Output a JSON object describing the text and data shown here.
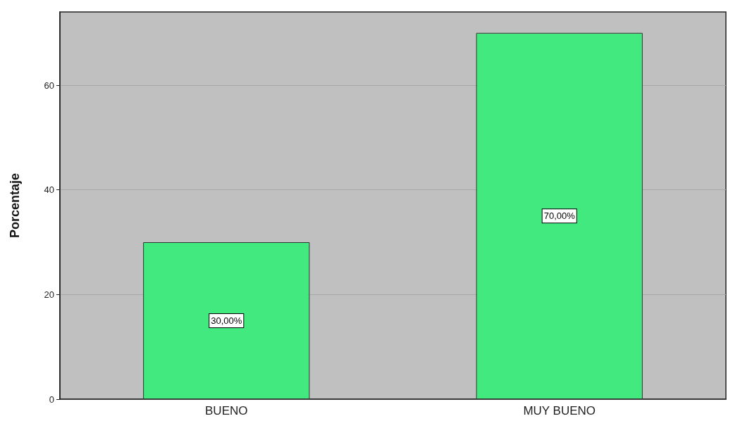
{
  "chart_data": {
    "type": "bar",
    "ylabel": "Porcentaje",
    "categories": [
      "BUENO",
      "MUY BUENO"
    ],
    "values": [
      30,
      70
    ],
    "value_labels": [
      "30,00%",
      "70,00%"
    ],
    "color": "#41e97f",
    "ylim": [
      0,
      74
    ],
    "yticks": [
      0,
      20,
      40,
      60
    ],
    "grid": "y"
  }
}
